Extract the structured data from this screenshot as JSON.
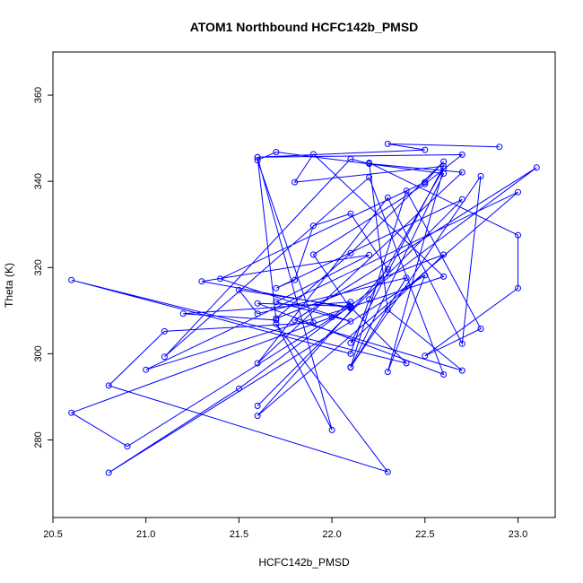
{
  "chart_data": {
    "type": "line",
    "title": "ATOM1 Northbound HCFC142b_PMSD",
    "xlabel": "HCFC142b_PMSD",
    "ylabel": "Theta (K)",
    "xlim": [
      20.5,
      23.2
    ],
    "ylim": [
      262,
      370
    ],
    "xticks": [
      20.5,
      21.0,
      21.5,
      22.0,
      22.5,
      23.0
    ],
    "xtick_labels": [
      "20.5",
      "21.0",
      "21.5",
      "22.0",
      "22.5",
      "23.0"
    ],
    "yticks": [
      280,
      300,
      320,
      340,
      360
    ],
    "ytick_labels": [
      "280",
      "300",
      "320",
      "340",
      "360"
    ],
    "grid": false,
    "series": [
      {
        "color": "#0000ff",
        "marker": "open-circle",
        "points": [
          [
            22.9,
            348.0
          ],
          [
            22.3,
            348.7
          ],
          [
            22.5,
            347.3
          ],
          [
            21.6,
            345.6
          ],
          [
            22.7,
            346.2
          ],
          [
            22.5,
            339.4
          ],
          [
            21.9,
            323.0
          ],
          [
            22.1,
            310.5
          ],
          [
            21.3,
            316.8
          ],
          [
            22.2,
            322.9
          ],
          [
            21.7,
            312.0
          ],
          [
            22.1,
            307.5
          ],
          [
            21.4,
            317.4
          ],
          [
            22.5,
            339.8
          ],
          [
            22.6,
            344.6
          ],
          [
            22.1,
            323.3
          ],
          [
            21.7,
            308.2
          ],
          [
            22.6,
            323.0
          ],
          [
            22.1,
            302.5
          ],
          [
            22.6,
            343.5
          ],
          [
            21.8,
            339.8
          ],
          [
            21.9,
            346.3
          ],
          [
            22.6,
            317.9
          ],
          [
            22.1,
            310.8
          ],
          [
            21.5,
            314.8
          ],
          [
            21.6,
            309.3
          ],
          [
            22.4,
            317.6
          ],
          [
            22.1,
            296.8
          ],
          [
            22.6,
            341.8
          ],
          [
            21.7,
            346.8
          ],
          [
            21.6,
            344.9
          ],
          [
            21.9,
            307.2
          ],
          [
            21.1,
            305.2
          ],
          [
            20.8,
            292.6
          ],
          [
            22.3,
            272.6
          ],
          [
            21.7,
            306.9
          ],
          [
            22.0,
            282.3
          ],
          [
            21.6,
            345.6
          ],
          [
            21.7,
            307.8
          ],
          [
            21.2,
            309.3
          ],
          [
            22.1,
            312.0
          ],
          [
            22.0,
            308.5
          ],
          [
            20.6,
            286.3
          ],
          [
            20.9,
            278.5
          ],
          [
            22.1,
            311.0
          ],
          [
            21.6,
            311.7
          ],
          [
            22.6,
            295.2
          ],
          [
            22.2,
            340.9
          ],
          [
            21.1,
            299.3
          ],
          [
            22.1,
            345.2
          ],
          [
            22.2,
            344.1
          ],
          [
            22.7,
            342.1
          ],
          [
            21.6,
            297.8
          ],
          [
            22.3,
            336.2
          ],
          [
            22.7,
            302.3
          ],
          [
            22.8,
            341.2
          ],
          [
            22.1,
            296.9
          ],
          [
            22.4,
            337.8
          ],
          [
            22.8,
            305.8
          ],
          [
            22.5,
            299.5
          ],
          [
            23.0,
            315.2
          ],
          [
            23.0,
            327.5
          ],
          [
            22.2,
            344.3
          ],
          [
            22.3,
            310.2
          ],
          [
            22.7,
            296.1
          ],
          [
            21.8,
            307.8
          ],
          [
            23.1,
            343.2
          ],
          [
            21.5,
            291.9
          ],
          [
            20.8,
            272.4
          ],
          [
            22.5,
            318.2
          ],
          [
            22.3,
            295.8
          ],
          [
            22.6,
            343.0
          ],
          [
            22.2,
            312.6
          ],
          [
            22.1,
            300.0
          ],
          [
            20.6,
            317.1
          ],
          [
            22.4,
            297.8
          ],
          [
            22.1,
            310.8
          ],
          [
            21.0,
            296.3
          ],
          [
            23.0,
            337.5
          ],
          [
            21.6,
            285.6
          ],
          [
            22.3,
            319.6
          ],
          [
            22.1,
            332.5
          ],
          [
            21.9,
            329.7
          ],
          [
            21.8,
            317.1
          ],
          [
            21.7,
            315.2
          ],
          [
            22.7,
            335.8
          ],
          [
            21.6,
            287.9
          ]
        ]
      }
    ]
  }
}
